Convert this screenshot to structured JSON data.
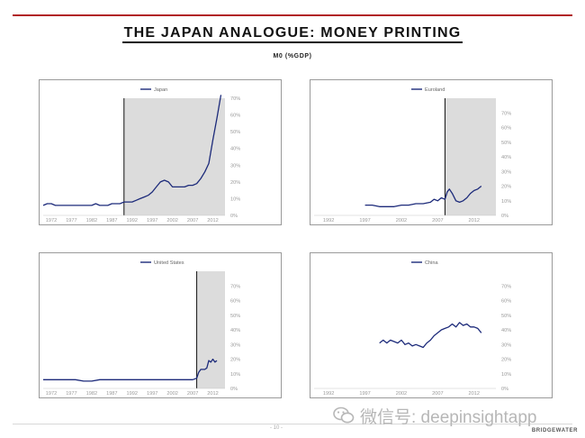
{
  "slide": {
    "title": "THE JAPAN ANALOGUE: MONEY PRINTING",
    "subtitle": "M0 (%GDP)",
    "page_number": "- 10 -",
    "company": "BRIDGEWATER",
    "watermark_text": "微信号: deepinsightapp"
  },
  "colors": {
    "line": "#1c2a7a",
    "shade": "#dcdcdc",
    "rule": "#b11f24",
    "axis_text": "#9a9a9a"
  },
  "chart_data": [
    {
      "type": "line",
      "series_name": "Japan",
      "x_ticks": [
        "1972",
        "1977",
        "1982",
        "1987",
        "1992",
        "1997",
        "2002",
        "2007",
        "2012"
      ],
      "x_range": [
        1970,
        2015
      ],
      "ylim": [
        0,
        70
      ],
      "y_ticks": [
        0,
        10,
        20,
        30,
        40,
        50,
        60,
        70
      ],
      "y_tick_labels": [
        "0%",
        "10%",
        "20%",
        "30%",
        "40%",
        "50%",
        "60%",
        "70%"
      ],
      "shade_from": 1990,
      "marker_year": 1990,
      "x": [
        1970,
        1971,
        1972,
        1973,
        1974,
        1975,
        1976,
        1977,
        1978,
        1979,
        1980,
        1981,
        1982,
        1983,
        1984,
        1985,
        1986,
        1987,
        1988,
        1989,
        1990,
        1991,
        1992,
        1993,
        1994,
        1995,
        1996,
        1997,
        1998,
        1999,
        2000,
        2001,
        2002,
        2003,
        2004,
        2005,
        2006,
        2007,
        2008,
        2009,
        2010,
        2011,
        2012,
        2013,
        2014
      ],
      "y": [
        6,
        7,
        7,
        6,
        6,
        6,
        6,
        6,
        6,
        6,
        6,
        6,
        6,
        7,
        6,
        6,
        6,
        7,
        7,
        7,
        8,
        8,
        8,
        9,
        10,
        11,
        12,
        14,
        17,
        20,
        21,
        20,
        17,
        17,
        17,
        17,
        18,
        18,
        19,
        22,
        26,
        31,
        45,
        58,
        72
      ]
    },
    {
      "type": "line",
      "series_name": "Euroland",
      "x_ticks": [
        "1992",
        "1997",
        "2002",
        "2007",
        "2012"
      ],
      "x_range": [
        1990,
        2015
      ],
      "ylim": [
        0,
        80
      ],
      "y_ticks": [
        0,
        10,
        20,
        30,
        40,
        50,
        60,
        70
      ],
      "y_tick_labels": [
        "0%",
        "10%",
        "20%",
        "30%",
        "40%",
        "50%",
        "60%",
        "70%"
      ],
      "shade_from": 2008,
      "marker_year": 2008,
      "x": [
        1997,
        1998,
        1999,
        2000,
        2001,
        2002,
        2003,
        2004,
        2005,
        2006,
        2006.5,
        2007,
        2007.5,
        2008,
        2008.3,
        2008.6,
        2009,
        2009.5,
        2010,
        2010.5,
        2011,
        2011.5,
        2012,
        2012.5,
        2013
      ],
      "y": [
        7,
        7,
        6,
        6,
        6,
        7,
        7,
        8,
        8,
        9,
        11,
        10,
        12,
        11,
        16,
        18,
        15,
        10,
        9,
        10,
        12,
        15,
        17,
        18,
        20
      ]
    },
    {
      "type": "line",
      "series_name": "United States",
      "x_ticks": [
        "1972",
        "1977",
        "1982",
        "1987",
        "1992",
        "1997",
        "2002",
        "2007",
        "2012"
      ],
      "x_range": [
        1970,
        2015
      ],
      "ylim": [
        0,
        80
      ],
      "y_ticks": [
        0,
        10,
        20,
        30,
        40,
        50,
        60,
        70
      ],
      "y_tick_labels": [
        "0%",
        "10%",
        "20%",
        "30%",
        "40%",
        "50%",
        "60%",
        "70%"
      ],
      "shade_from": 2008,
      "marker_year": 2008,
      "x": [
        1970,
        1972,
        1974,
        1976,
        1978,
        1980,
        1982,
        1984,
        1986,
        1988,
        1990,
        1992,
        1994,
        1996,
        1998,
        2000,
        2002,
        2004,
        2006,
        2007,
        2008,
        2008.5,
        2009,
        2010,
        2010.5,
        2011,
        2011.5,
        2012,
        2012.5,
        2013
      ],
      "y": [
        6,
        6,
        6,
        6,
        6,
        5,
        5,
        6,
        6,
        6,
        6,
        6,
        6,
        6,
        6,
        6,
        6,
        6,
        6,
        6,
        7,
        11,
        13,
        13,
        14,
        19,
        18,
        20,
        18,
        19
      ]
    },
    {
      "type": "line",
      "series_name": "China",
      "x_ticks": [
        "1992",
        "1997",
        "2002",
        "2007",
        "2012"
      ],
      "x_range": [
        1990,
        2015
      ],
      "ylim": [
        0,
        80
      ],
      "y_ticks": [
        0,
        10,
        20,
        30,
        40,
        50,
        60,
        70
      ],
      "y_tick_labels": [
        "0%",
        "10%",
        "20%",
        "30%",
        "40%",
        "50%",
        "60%",
        "70%"
      ],
      "shade_from": null,
      "marker_year": null,
      "x": [
        1999,
        1999.5,
        2000,
        2000.5,
        2001,
        2001.5,
        2002,
        2002.5,
        2003,
        2003.5,
        2004,
        2004.5,
        2005,
        2005.5,
        2006,
        2006.5,
        2007,
        2007.5,
        2008,
        2008.5,
        2009,
        2009.5,
        2010,
        2010.5,
        2011,
        2011.5,
        2012,
        2012.5,
        2013
      ],
      "y": [
        31,
        33,
        31,
        33,
        32,
        31,
        33,
        30,
        31,
        29,
        30,
        29,
        28,
        31,
        33,
        36,
        38,
        40,
        41,
        42,
        44,
        42,
        45,
        43,
        44,
        42,
        42,
        41,
        38
      ]
    }
  ]
}
